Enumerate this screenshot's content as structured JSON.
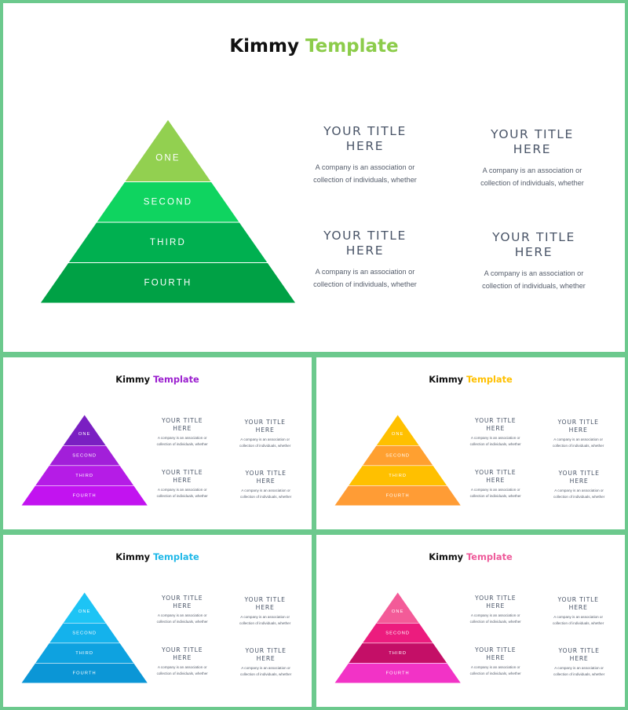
{
  "slides": [
    {
      "title_part1": "Kimmy",
      "title_part2": "Template",
      "accent": "#8ccc4a",
      "layers": [
        "ONE",
        "SECOND",
        "THIRD",
        "FOURTH"
      ],
      "layer_colors": [
        "#92d050",
        "#0fd460",
        "#00b050",
        "#00a145"
      ],
      "blocks": [
        {
          "title_l1": "YOUR TITLE",
          "title_l2": "HERE",
          "body_l1": "A company is an association or",
          "body_l2": "collection of individuals, whether"
        },
        {
          "title_l1": "YOUR TITLE",
          "title_l2": "HERE",
          "body_l1": "A company is an association or",
          "body_l2": "collection of individuals, whether"
        },
        {
          "title_l1": "YOUR TITLE",
          "title_l2": "HERE",
          "body_l1": "A company is an association or",
          "body_l2": "collection of individuals, whether"
        },
        {
          "title_l1": "YOUR TITLE",
          "title_l2": "HERE",
          "body_l1": "A company is an association or",
          "body_l2": "collection of individuals, whether"
        }
      ]
    },
    {
      "title_part1": "Kimmy",
      "title_part2": "Template",
      "accent": "#9b1fcf",
      "layers": [
        "ONE",
        "SECOND",
        "THIRD",
        "FOURTH"
      ],
      "layer_colors": [
        "#7a1fc2",
        "#a21fd9",
        "#b51ce6",
        "#c213f0"
      ],
      "blocks": [
        {
          "title_l1": "YOUR TITLE",
          "title_l2": "HERE",
          "body_l1": "A company is an association or",
          "body_l2": "collection of individuals, whether"
        },
        {
          "title_l1": "YOUR TITLE",
          "title_l2": "HERE",
          "body_l1": "A company is an association or",
          "body_l2": "collection of individuals, whether"
        },
        {
          "title_l1": "YOUR TITLE",
          "title_l2": "HERE",
          "body_l1": "A company is an association or",
          "body_l2": "collection of individuals, whether"
        },
        {
          "title_l1": "YOUR TITLE",
          "title_l2": "HERE",
          "body_l1": "A company is an association or",
          "body_l2": "collection of individuals, whether"
        }
      ]
    },
    {
      "title_part1": "Kimmy",
      "title_part2": "Template",
      "accent": "#ffc000",
      "layers": [
        "ONE",
        "SECOND",
        "THIRD",
        "FOURTH"
      ],
      "layer_colors": [
        "#ffc000",
        "#ffa030",
        "#ffc000",
        "#ff9c35"
      ],
      "blocks": [
        {
          "title_l1": "YOUR TITLE",
          "title_l2": "HERE",
          "body_l1": "A company is an association or",
          "body_l2": "collection of individuals, whether"
        },
        {
          "title_l1": "YOUR TITLE",
          "title_l2": "HERE",
          "body_l1": "A company is an association or",
          "body_l2": "collection of individuals, whether"
        },
        {
          "title_l1": "YOUR TITLE",
          "title_l2": "HERE",
          "body_l1": "A company is an association or",
          "body_l2": "collection of individuals, whether"
        },
        {
          "title_l1": "YOUR TITLE",
          "title_l2": "HERE",
          "body_l1": "A company is an association or",
          "body_l2": "collection of individuals, whether"
        }
      ]
    },
    {
      "title_part1": "Kimmy",
      "title_part2": "Template",
      "accent": "#1fb8e8",
      "layers": [
        "ONE",
        "SECOND",
        "THIRD",
        "FOURTH"
      ],
      "layer_colors": [
        "#1dc4f5",
        "#14b2ec",
        "#0ea2e0",
        "#0b96d6"
      ],
      "blocks": [
        {
          "title_l1": "YOUR TITLE",
          "title_l2": "HERE",
          "body_l1": "A company is an association or",
          "body_l2": "collection of individuals, whether"
        },
        {
          "title_l1": "YOUR TITLE",
          "title_l2": "HERE",
          "body_l1": "A company is an association or",
          "body_l2": "collection of individuals, whether"
        },
        {
          "title_l1": "YOUR TITLE",
          "title_l2": "HERE",
          "body_l1": "A company is an association or",
          "body_l2": "collection of individuals, whether"
        },
        {
          "title_l1": "YOUR TITLE",
          "title_l2": "HERE",
          "body_l1": "A company is an association or",
          "body_l2": "collection of individuals, whether"
        }
      ]
    },
    {
      "title_part1": "Kimmy",
      "title_part2": "Template",
      "accent": "#ee5a9a",
      "layers": [
        "ONE",
        "SECOND",
        "THIRD",
        "FOURTH"
      ],
      "layer_colors": [
        "#f35b98",
        "#ec1c7e",
        "#c40f67",
        "#f233c6"
      ],
      "blocks": [
        {
          "title_l1": "YOUR TITLE",
          "title_l2": "HERE",
          "body_l1": "A company is an association or",
          "body_l2": "collection of individuals, whether"
        },
        {
          "title_l1": "YOUR TITLE",
          "title_l2": "HERE",
          "body_l1": "A company is an association or",
          "body_l2": "collection of individuals, whether"
        },
        {
          "title_l1": "YOUR TITLE",
          "title_l2": "HERE",
          "body_l1": "A company is an association or",
          "body_l2": "collection of individuals, whether"
        },
        {
          "title_l1": "YOUR TITLE",
          "title_l2": "HERE",
          "body_l1": "A company is an association or",
          "body_l2": "collection of individuals, whether"
        }
      ]
    }
  ]
}
